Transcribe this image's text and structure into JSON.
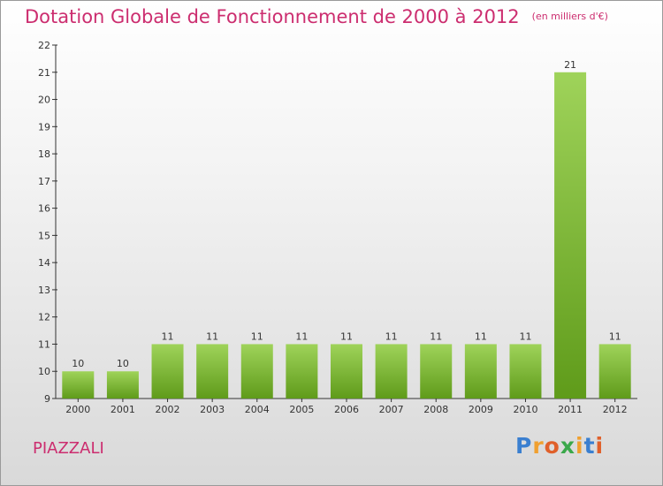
{
  "title": "Dotation Globale de Fonctionnement de 2000 à 2012",
  "subtitle": "(en milliers d'€)",
  "commune": "PIAZZALI",
  "logo": {
    "letters": [
      "P",
      "r",
      "o",
      "x",
      "i",
      "t",
      "i"
    ],
    "colors": [
      "#3a7fd0",
      "#f0a030",
      "#e0602a",
      "#3aa84a",
      "#f0a030",
      "#3a7fd0",
      "#e0602a"
    ]
  },
  "colors": {
    "accent": "#cc2d6f",
    "bar_top": "#9fd35a",
    "bar_bottom": "#5f9b1a"
  },
  "chart_data": {
    "type": "bar",
    "title": "Dotation Globale de Fonctionnement de 2000 à 2012",
    "categories": [
      "2000",
      "2001",
      "2002",
      "2003",
      "2004",
      "2005",
      "2006",
      "2007",
      "2008",
      "2009",
      "2010",
      "2011",
      "2012"
    ],
    "values": [
      10,
      10,
      11,
      11,
      11,
      11,
      11,
      11,
      11,
      11,
      11,
      21,
      11
    ],
    "ylim": [
      9,
      22
    ],
    "yticks": [
      9,
      10,
      11,
      12,
      13,
      14,
      15,
      16,
      17,
      18,
      19,
      20,
      21,
      22
    ],
    "grid": false,
    "xlabel": "",
    "ylabel": ""
  }
}
